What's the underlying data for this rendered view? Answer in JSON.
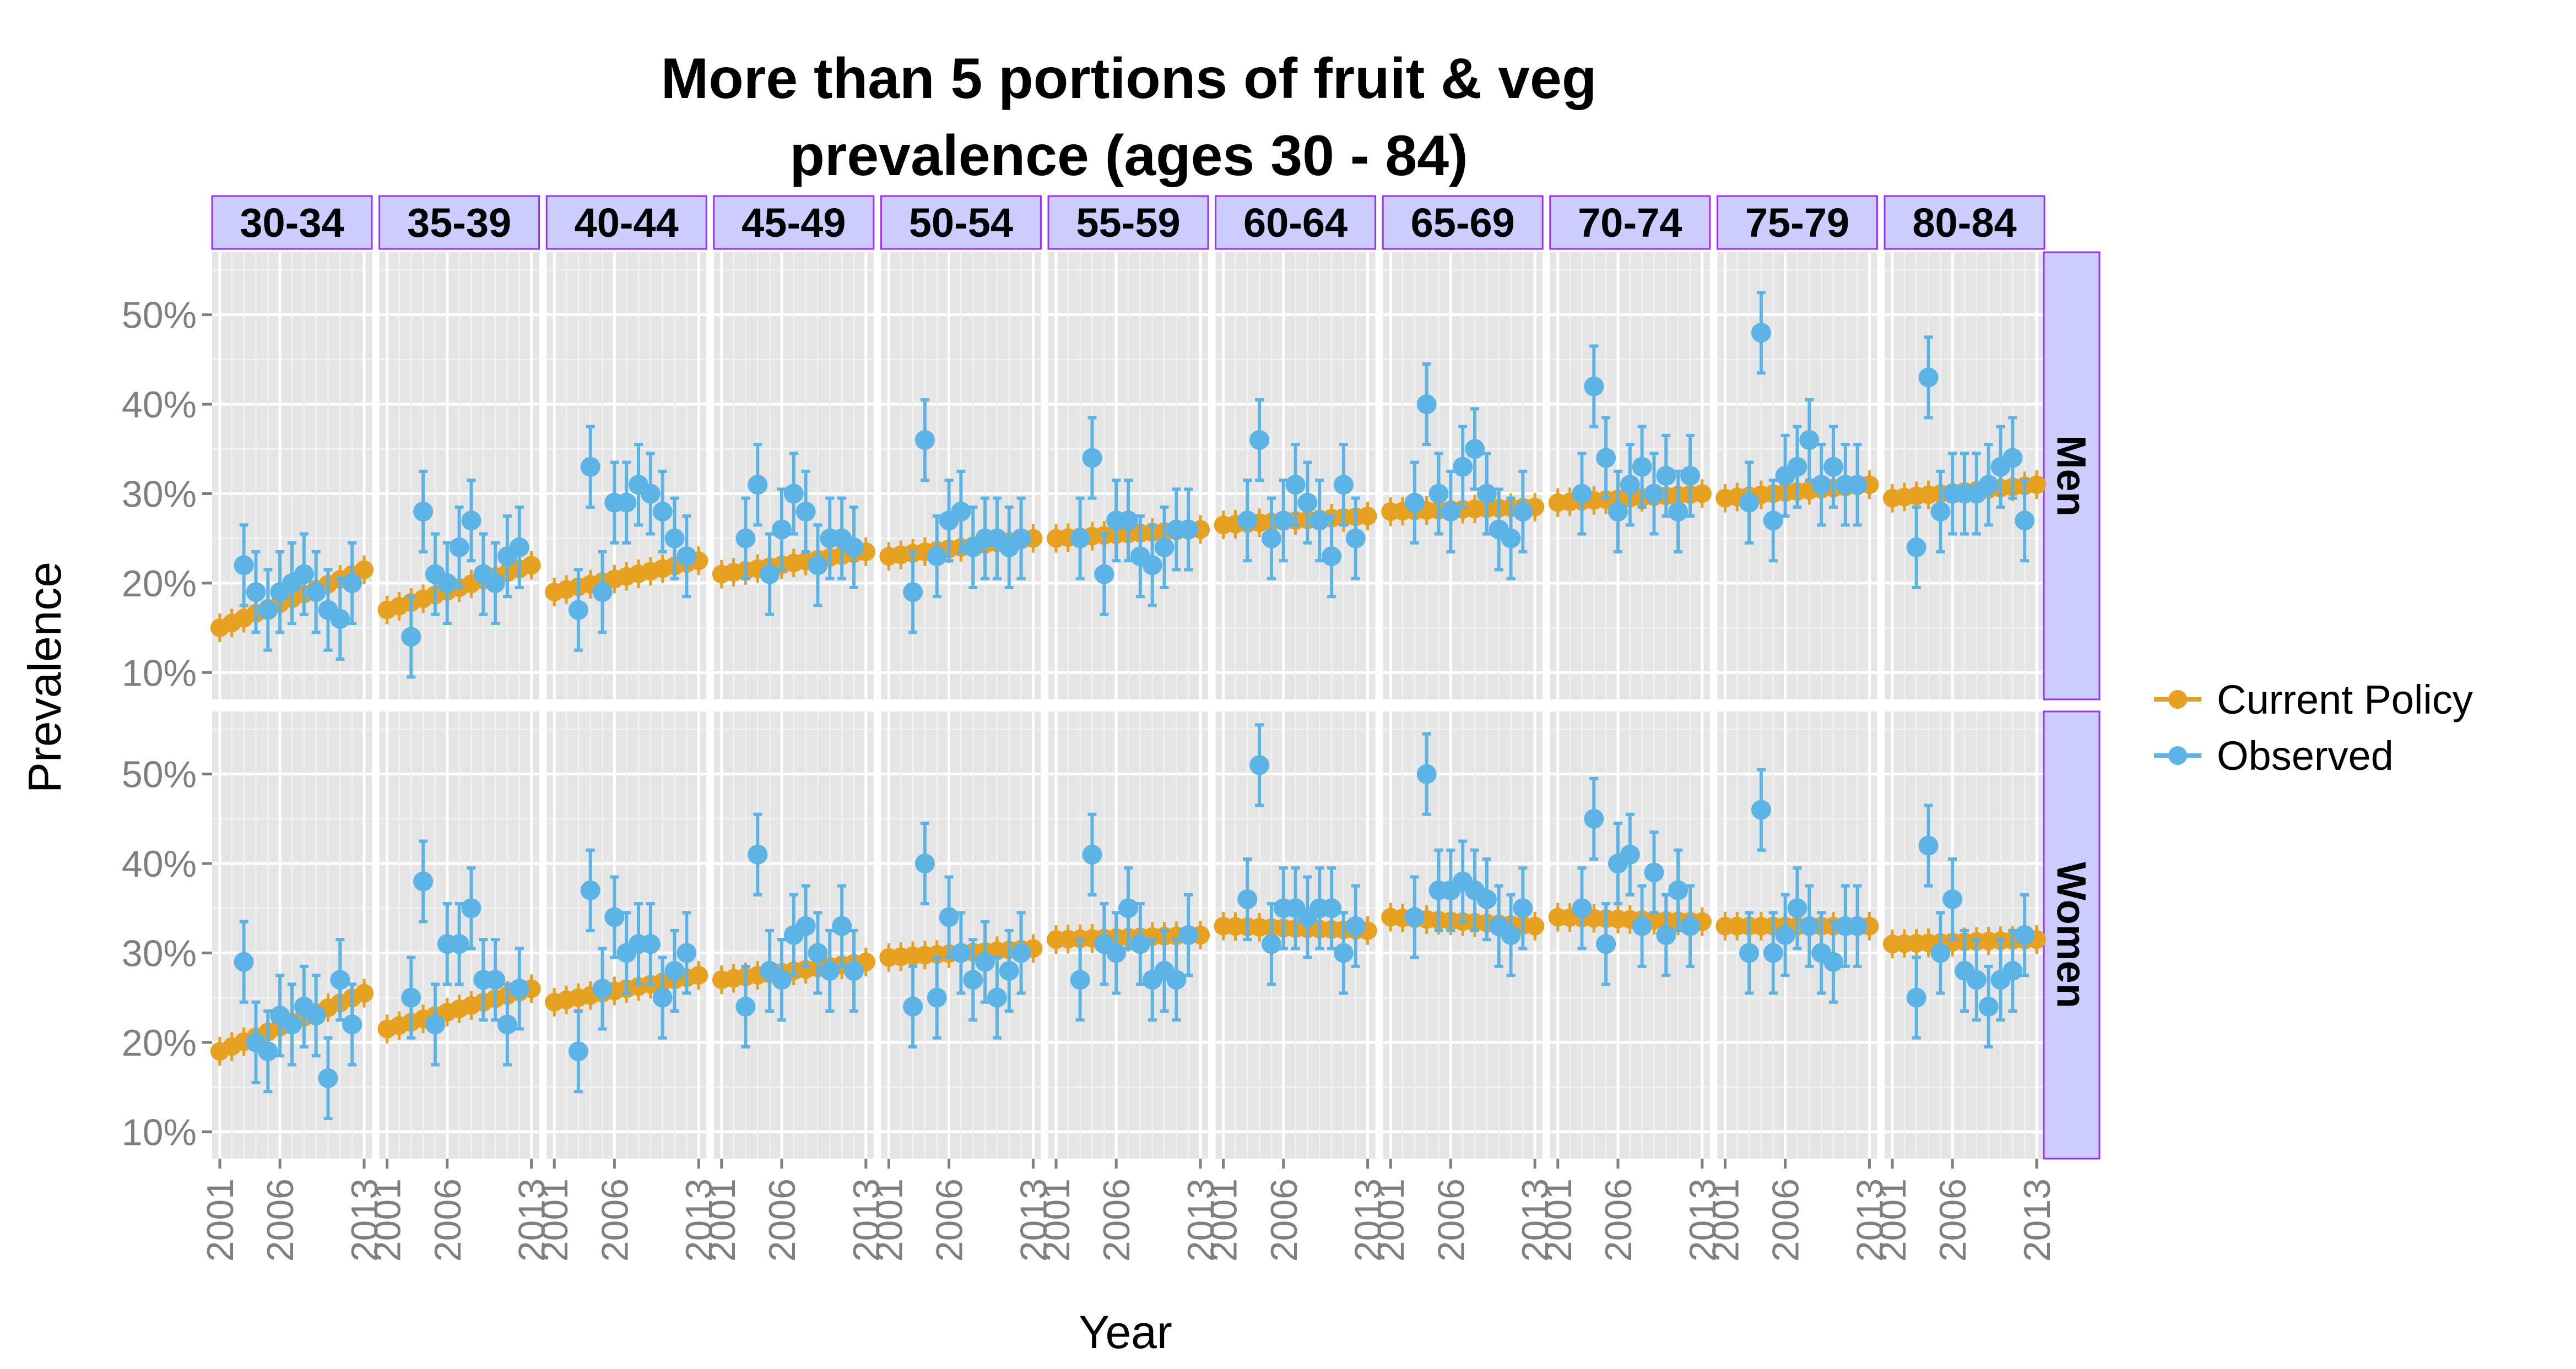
{
  "chart_data": {
    "type": "scatter",
    "title_line1": "More than 5 portions of fruit & veg",
    "title_line2": "prevalence (ages 30 - 84)",
    "xlabel": "Year",
    "ylabel": "Prevalence",
    "x_ticks": [
      "2001",
      "2006",
      "2013"
    ],
    "xlim": [
      2001,
      2013
    ],
    "y_ticks": [
      "10%",
      "20%",
      "30%",
      "40%",
      "50%"
    ],
    "ylim": [
      7,
      57
    ],
    "panel_columns": [
      "30-34",
      "35-39",
      "40-44",
      "45-49",
      "50-54",
      "55-59",
      "60-64",
      "65-69",
      "70-74",
      "75-79",
      "80-84"
    ],
    "panel_rows": [
      "Men",
      "Women"
    ],
    "grid": true,
    "legend_position": "right",
    "legend": [
      {
        "name": "Current Policy",
        "color": "#E5A11F"
      },
      {
        "name": "Observed",
        "color": "#5BB4E5"
      }
    ],
    "current_policy_years": [
      2001,
      2002,
      2003,
      2004,
      2005,
      2006,
      2007,
      2008,
      2009,
      2010,
      2011,
      2012,
      2013
    ],
    "current_policy_ci": 1.6,
    "observed_years": [
      2003,
      2004,
      2005,
      2006,
      2007,
      2008,
      2009,
      2010,
      2011,
      2012
    ],
    "observed_ci": 4.5,
    "panels": [
      {
        "row": "Men",
        "col": "30-34",
        "current_policy": [
          15.0,
          21.5
        ],
        "observed": [
          22,
          19,
          17,
          19,
          20,
          21,
          19,
          17,
          16,
          20
        ]
      },
      {
        "row": "Men",
        "col": "35-39",
        "current_policy": [
          17.0,
          22.0
        ],
        "observed": [
          14,
          28,
          21,
          20,
          24,
          27,
          21,
          20,
          23,
          24
        ]
      },
      {
        "row": "Men",
        "col": "40-44",
        "current_policy": [
          19.0,
          22.5
        ],
        "observed": [
          17,
          33,
          19,
          29,
          29,
          31,
          30,
          28,
          25,
          23
        ]
      },
      {
        "row": "Men",
        "col": "45-49",
        "current_policy": [
          21.0,
          23.5
        ],
        "observed": [
          25,
          31,
          21,
          26,
          30,
          28,
          22,
          25,
          25,
          24
        ]
      },
      {
        "row": "Men",
        "col": "50-54",
        "current_policy": [
          23.0,
          25.0
        ],
        "observed": [
          19,
          36,
          23,
          27,
          28,
          24,
          25,
          25,
          24,
          25
        ]
      },
      {
        "row": "Men",
        "col": "55-59",
        "current_policy": [
          25.0,
          26.0
        ],
        "observed": [
          25,
          34,
          21,
          27,
          27,
          23,
          22,
          24,
          26,
          26
        ]
      },
      {
        "row": "Men",
        "col": "60-64",
        "current_policy": [
          26.5,
          27.5
        ],
        "observed": [
          27,
          36,
          25,
          27,
          31,
          29,
          27,
          23,
          31,
          25
        ]
      },
      {
        "row": "Men",
        "col": "65-69",
        "current_policy": [
          28.0,
          28.5
        ],
        "observed": [
          29,
          40,
          30,
          28,
          33,
          35,
          30,
          26,
          25,
          28
        ]
      },
      {
        "row": "Men",
        "col": "70-74",
        "current_policy": [
          29.0,
          30.0
        ],
        "observed": [
          30,
          42,
          34,
          28,
          31,
          33,
          30,
          32,
          28,
          32
        ]
      },
      {
        "row": "Men",
        "col": "75-79",
        "current_policy": [
          29.5,
          31.0
        ],
        "observed": [
          29,
          48,
          27,
          32,
          33,
          36,
          31,
          33,
          31,
          31
        ]
      },
      {
        "row": "Men",
        "col": "80-84",
        "current_policy": [
          29.5,
          31.0
        ],
        "observed": [
          24,
          43,
          28,
          30,
          30,
          30,
          31,
          33,
          34,
          27
        ]
      },
      {
        "row": "Women",
        "col": "30-34",
        "current_policy": [
          19.0,
          25.5
        ],
        "observed": [
          29,
          20,
          19,
          23,
          22,
          24,
          23,
          16,
          27,
          22
        ]
      },
      {
        "row": "Women",
        "col": "35-39",
        "current_policy": [
          21.5,
          26.0
        ],
        "observed": [
          25,
          38,
          22,
          31,
          31,
          35,
          27,
          27,
          22,
          26
        ]
      },
      {
        "row": "Women",
        "col": "40-44",
        "current_policy": [
          24.5,
          27.5
        ],
        "observed": [
          19,
          37,
          26,
          34,
          30,
          31,
          31,
          25,
          28,
          30
        ]
      },
      {
        "row": "Women",
        "col": "45-49",
        "current_policy": [
          27.0,
          29.0
        ],
        "observed": [
          24,
          41,
          28,
          27,
          32,
          33,
          30,
          28,
          33,
          28
        ]
      },
      {
        "row": "Women",
        "col": "50-54",
        "current_policy": [
          29.5,
          30.5
        ],
        "observed": [
          24,
          40,
          25,
          34,
          30,
          27,
          29,
          25,
          28,
          30
        ]
      },
      {
        "row": "Women",
        "col": "55-59",
        "current_policy": [
          31.5,
          32.0
        ],
        "observed": [
          27,
          41,
          31,
          30,
          35,
          31,
          27,
          28,
          27,
          32
        ]
      },
      {
        "row": "Women",
        "col": "60-64",
        "current_policy": [
          33.0,
          32.5
        ],
        "observed": [
          36,
          51,
          31,
          35,
          35,
          34,
          35,
          35,
          30,
          33
        ]
      },
      {
        "row": "Women",
        "col": "65-69",
        "current_policy": [
          34.0,
          33.0
        ],
        "observed": [
          34,
          50,
          37,
          37,
          38,
          37,
          36,
          33,
          32,
          35
        ]
      },
      {
        "row": "Women",
        "col": "70-74",
        "current_policy": [
          34.0,
          33.5
        ],
        "observed": [
          35,
          45,
          31,
          40,
          41,
          33,
          39,
          32,
          37,
          33
        ]
      },
      {
        "row": "Women",
        "col": "75-79",
        "current_policy": [
          33.0,
          33.0
        ],
        "observed": [
          30,
          46,
          30,
          32,
          35,
          33,
          30,
          29,
          33,
          33
        ]
      },
      {
        "row": "Women",
        "col": "80-84",
        "current_policy": [
          31.0,
          31.5
        ],
        "observed": [
          25,
          42,
          30,
          36,
          28,
          27,
          24,
          27,
          28,
          32
        ]
      }
    ]
  }
}
